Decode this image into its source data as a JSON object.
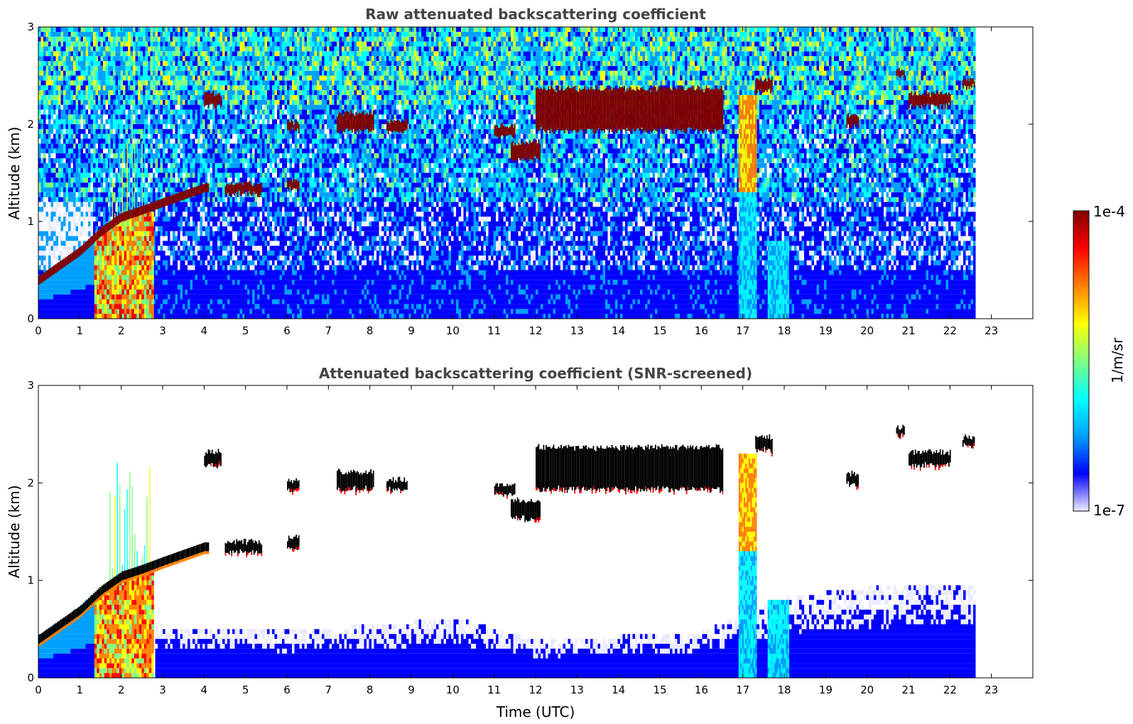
{
  "chart_data": [
    {
      "type": "heatmap",
      "title": "Raw attenuated backscattering coefficient",
      "xlabel": "",
      "ylabel": "Altitude (km)",
      "xlim": [
        0,
        24
      ],
      "ylim": [
        0,
        3
      ],
      "xticks": [
        0,
        1,
        2,
        3,
        4,
        5,
        6,
        7,
        8,
        9,
        10,
        11,
        12,
        13,
        14,
        15,
        16,
        17,
        18,
        19,
        20,
        21,
        22,
        23
      ],
      "yticks": [
        0,
        1,
        2,
        3
      ],
      "data_extent_time": [
        0,
        22.6
      ],
      "features": {
        "boundary_layer": {
          "points": [
            [
              0,
              0.4
            ],
            [
              0.5,
              0.55
            ],
            [
              1,
              0.7
            ],
            [
              1.5,
              0.9
            ],
            [
              2,
              1.05
            ],
            [
              2.5,
              1.12
            ],
            [
              3,
              1.2
            ],
            [
              4,
              1.35
            ]
          ]
        },
        "dense_plume": {
          "time": [
            1.35,
            2.75
          ],
          "altitude": [
            0,
            1.1
          ]
        },
        "cloud_layers": [
          {
            "time": [
              4.0,
              4.4
            ],
            "altitude": [
              2.2,
              2.3
            ]
          },
          {
            "time": [
              6.0,
              6.3
            ],
            "altitude": [
              1.95,
              2.0
            ]
          },
          {
            "time": [
              7.2,
              8.1
            ],
            "altitude": [
              1.95,
              2.1
            ]
          },
          {
            "time": [
              8.4,
              8.9
            ],
            "altitude": [
              1.95,
              2.02
            ]
          },
          {
            "time": [
              11.0,
              11.5
            ],
            "altitude": [
              1.9,
              1.97
            ]
          },
          {
            "time": [
              11.4,
              12.1
            ],
            "altitude": [
              1.65,
              1.8
            ]
          },
          {
            "time": [
              12.0,
              16.5
            ],
            "altitude": [
              1.95,
              2.35
            ]
          },
          {
            "time": [
              17.3,
              17.7
            ],
            "altitude": [
              2.35,
              2.45
            ]
          },
          {
            "time": [
              19.5,
              19.8
            ],
            "altitude": [
              2.0,
              2.08
            ]
          },
          {
            "time": [
              20.7,
              20.9
            ],
            "altitude": [
              2.5,
              2.55
            ]
          },
          {
            "time": [
              21.0,
              22.0
            ],
            "altitude": [
              2.2,
              2.3
            ]
          },
          {
            "time": [
              22.3,
              22.6
            ],
            "altitude": [
              2.4,
              2.45
            ]
          },
          {
            "time": [
              4.5,
              5.4
            ],
            "altitude": [
              1.3,
              1.38
            ]
          },
          {
            "time": [
              6.0,
              6.3
            ],
            "altitude": [
              1.35,
              1.42
            ]
          }
        ],
        "precipitation_columns": [
          {
            "time": [
              16.9,
              17.3
            ],
            "altitude": [
              0,
              2.3
            ]
          },
          {
            "time": [
              17.6,
              18.1
            ],
            "altitude": [
              0,
              0.8
            ]
          }
        ]
      }
    },
    {
      "type": "heatmap",
      "title": "Attenuated backscattering coefficient (SNR-screened)",
      "xlabel": "Time (UTC)",
      "ylabel": "Altitude (km)",
      "xlim": [
        0,
        24
      ],
      "ylim": [
        0,
        3
      ],
      "xticks": [
        0,
        1,
        2,
        3,
        4,
        5,
        6,
        7,
        8,
        9,
        10,
        11,
        12,
        13,
        14,
        15,
        16,
        17,
        18,
        19,
        20,
        21,
        22,
        23
      ],
      "yticks": [
        0,
        1,
        2,
        3
      ],
      "data_extent_time": [
        0,
        22.6
      ],
      "features": {
        "screened_noise_top": {
          "points": [
            [
              3,
              0.5
            ],
            [
              6,
              0.45
            ],
            [
              9,
              0.55
            ],
            [
              10,
              0.6
            ],
            [
              12,
              0.35
            ],
            [
              14,
              0.4
            ],
            [
              16,
              0.45
            ],
            [
              18,
              0.8
            ],
            [
              20,
              0.9
            ],
            [
              22.6,
              0.95
            ]
          ]
        }
      }
    }
  ],
  "colorbar": {
    "label": "1/m/sr",
    "min_label": "1e-7",
    "max_label": "1e-4",
    "colormap": "jet",
    "colors": [
      "#ebebff",
      "#0000ff",
      "#00a0ff",
      "#00ffff",
      "#80ff80",
      "#ffff00",
      "#ff8000",
      "#ff0000",
      "#800000"
    ]
  }
}
